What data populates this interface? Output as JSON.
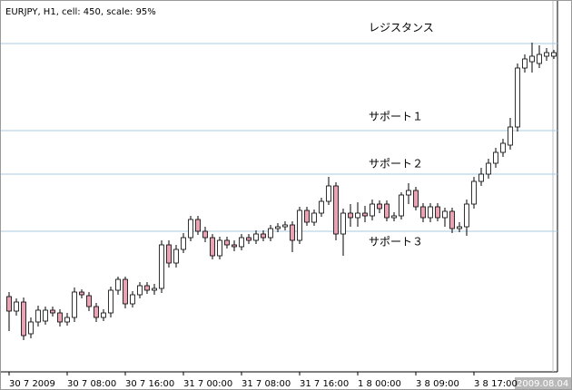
{
  "chart_data": {
    "type": "candlestick",
    "title": "EURJPY, H1, cell: 450, scale: 95%",
    "ylim": [
      0,
      402
    ],
    "bull_color": "#ffffff",
    "bear_color": "#e8a3b4",
    "level_color": "#a9cbe0",
    "categories": [
      "30 7 2009",
      null,
      null,
      null,
      null,
      null,
      null,
      null,
      "30 7 08:00",
      null,
      null,
      null,
      null,
      null,
      null,
      null,
      "30 7 16:00",
      null,
      null,
      null,
      null,
      null,
      null,
      null,
      "31 7 00:00",
      null,
      null,
      null,
      null,
      null,
      null,
      null,
      "31 7 08:00",
      null,
      null,
      null,
      null,
      null,
      null,
      null,
      "31 7 16:00",
      null,
      null,
      null,
      null,
      null,
      null,
      null,
      "1 8 00:00",
      null,
      null,
      null,
      null,
      null,
      null,
      null,
      "3 8 09:00",
      null,
      null,
      null,
      null,
      null,
      null,
      null,
      "3 8 17:00",
      null,
      null,
      null,
      null,
      null,
      null,
      null,
      null,
      null,
      null,
      null
    ],
    "time_marker": "2009.08.04",
    "open": [
      78,
      62,
      72,
      37,
      50,
      51,
      63,
      60,
      50,
      55,
      83,
      79,
      67,
      55,
      60,
      85,
      97,
      70,
      80,
      90,
      85,
      87,
      135,
      115,
      130,
      143,
      163,
      150,
      143,
      123,
      140,
      135,
      133,
      143,
      140,
      147,
      143,
      153,
      155,
      157,
      140,
      173,
      160,
      170,
      183,
      200,
      147,
      170,
      165,
      170,
      167,
      180,
      180,
      165,
      167,
      190,
      195,
      177,
      165,
      177,
      165,
      172,
      153,
      155,
      180,
      205,
      213,
      225,
      237,
      245,
      265,
      330,
      337,
      335,
      343,
      343
    ],
    "high": [
      83,
      76,
      77,
      55,
      68,
      67,
      67,
      64,
      60,
      88,
      86,
      83,
      71,
      64,
      89,
      100,
      100,
      84,
      94,
      94,
      92,
      140,
      140,
      135,
      148,
      167,
      167,
      155,
      147,
      144,
      144,
      140,
      147,
      147,
      151,
      151,
      157,
      159,
      161,
      161,
      177,
      177,
      174,
      187,
      210,
      204,
      175,
      180,
      182,
      178,
      185,
      184,
      184,
      171,
      193,
      203,
      199,
      181,
      181,
      181,
      176,
      176,
      160,
      185,
      210,
      220,
      230,
      242,
      252,
      275,
      335,
      345,
      358,
      355,
      352,
      350
    ],
    "low": [
      40,
      57,
      30,
      32,
      45,
      47,
      56,
      45,
      46,
      50,
      76,
      62,
      50,
      51,
      55,
      80,
      65,
      66,
      76,
      81,
      80,
      82,
      110,
      110,
      126,
      139,
      146,
      138,
      119,
      119,
      131,
      128,
      129,
      136,
      136,
      139,
      139,
      149,
      151,
      127,
      136,
      156,
      156,
      166,
      179,
      140,
      123,
      155,
      155,
      160,
      162,
      170,
      161,
      161,
      163,
      180,
      173,
      160,
      160,
      161,
      155,
      148,
      149,
      145,
      175,
      200,
      208,
      220,
      232,
      240,
      260,
      325,
      325,
      330,
      338,
      340
    ],
    "close": [
      62,
      72,
      35,
      50,
      63,
      63,
      60,
      50,
      55,
      83,
      80,
      67,
      55,
      60,
      85,
      97,
      70,
      80,
      90,
      85,
      87,
      135,
      115,
      130,
      143,
      163,
      150,
      143,
      123,
      140,
      135,
      133,
      143,
      140,
      147,
      143,
      153,
      155,
      157,
      140,
      173,
      160,
      170,
      183,
      200,
      147,
      170,
      165,
      170,
      167,
      180,
      175,
      165,
      167,
      190,
      195,
      177,
      165,
      177,
      165,
      172,
      153,
      155,
      180,
      205,
      213,
      225,
      237,
      247,
      265,
      330,
      340,
      343,
      345,
      347,
      347
    ],
    "levels": [
      {
        "label": "レジスタンス",
        "value": 357
      },
      {
        "label": "サポート１",
        "value": 261
      },
      {
        "label": "サポート２",
        "value": 213
      },
      {
        "label": "サポート３",
        "value": 150
      }
    ]
  }
}
